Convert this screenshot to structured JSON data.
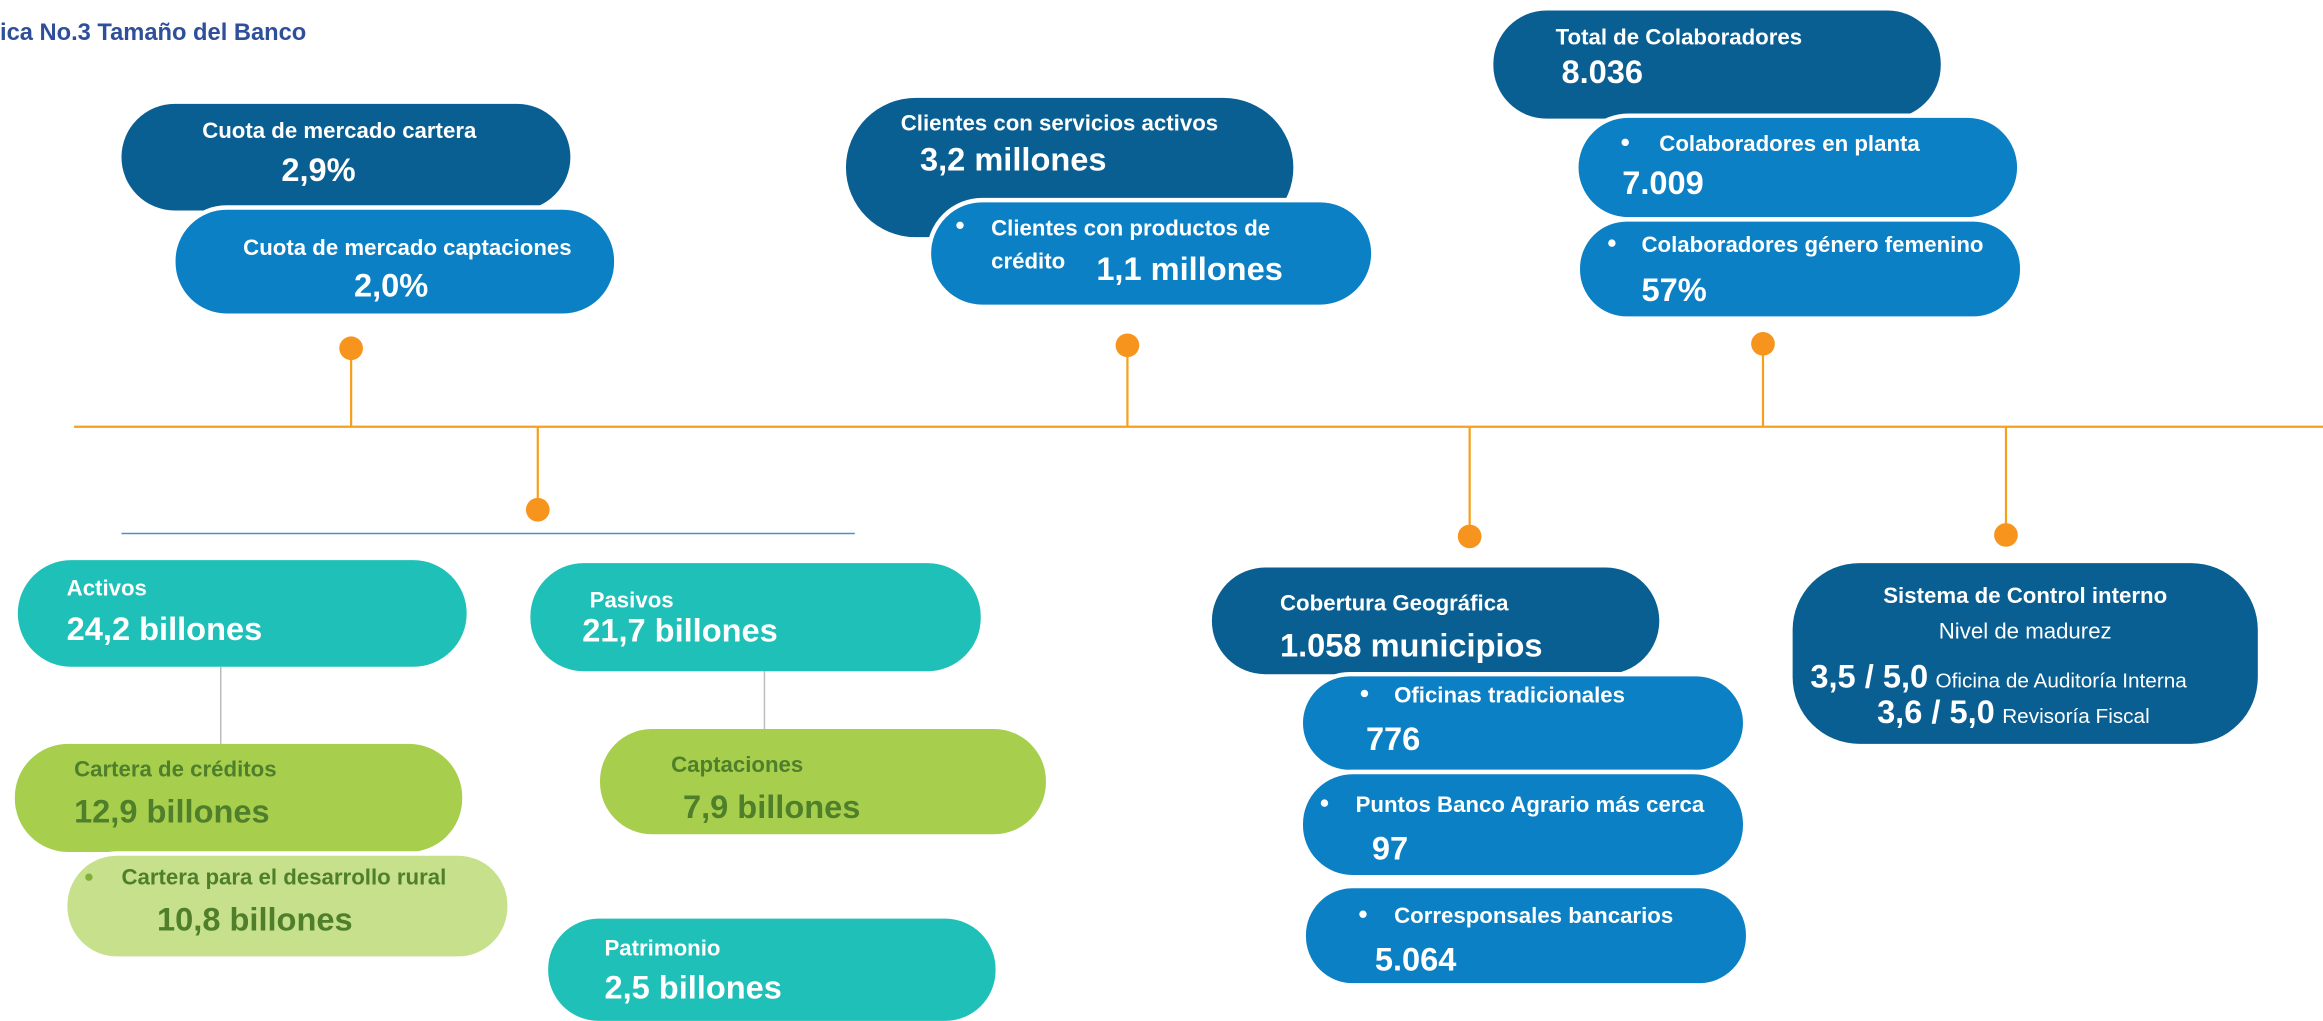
{
  "title": "ica No.3  Tamaño del Banco",
  "boxes": [
    {
      "label": "Cuota de mercado cartera",
      "value": "2,9%"
    },
    {
      "label": "Cuota de mercado captaciones",
      "value": "2,0%"
    },
    {
      "label": "Clientes con servicios activos",
      "value": "3,2 millones"
    },
    {
      "label": "Clientes con productos de",
      "label2": "crédito",
      "value": "1,1 millones"
    },
    {
      "label": "Total de Colaboradores",
      "value": "8.036"
    },
    {
      "label": "Colaboradores en planta",
      "value": "7.009"
    },
    {
      "label": "Colaboradores género femenino",
      "value": "57%"
    },
    {
      "label": "Activos",
      "value": "24,2 billones"
    },
    {
      "label": "Pasivos",
      "value": "21,7 billones"
    },
    {
      "label": "Cartera de créditos",
      "value": "12,9 billones"
    },
    {
      "label": "Cartera para el desarrollo rural",
      "value": "10,8 billones"
    },
    {
      "label": "Captaciones",
      "value": "7,9 billones"
    },
    {
      "label": "Patrimonio",
      "value": "2,5 billones"
    },
    {
      "label": "Cobertura Geográfica",
      "value": "1.058 municipios"
    },
    {
      "label": "Oficinas tradicionales",
      "value": "776"
    },
    {
      "label": "Puntos Banco Agrario más cerca",
      "value": "97"
    },
    {
      "label": "Corresponsales bancarios",
      "value": "5.064"
    }
  ],
  "control": {
    "title": "Sistema de Control interno",
    "subtitle": "Nivel de madurez",
    "lines": [
      {
        "value": "3,5 / 5,0",
        "label": "Oficina de Auditoría Interna"
      },
      {
        "value": "3,6 / 5,0",
        "label": "Revisoría Fiscal"
      }
    ]
  }
}
